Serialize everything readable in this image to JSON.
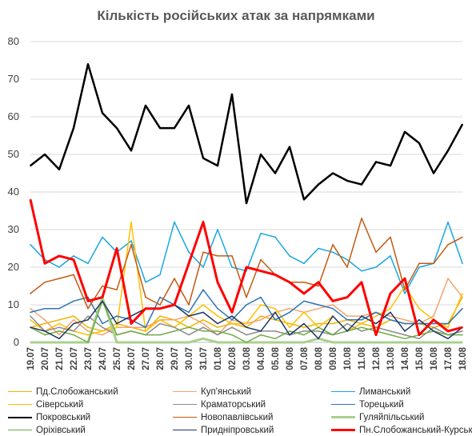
{
  "chart_data": {
    "type": "line",
    "title": "Кількість російських атак за напрямками",
    "xlabel": "",
    "ylabel": "",
    "ylim": [
      0,
      80
    ],
    "yticks": [
      0,
      10,
      20,
      30,
      40,
      50,
      60,
      70,
      80
    ],
    "grid": "horizontal",
    "legend_position": "bottom",
    "categories": [
      "19.07",
      "20.07",
      "21.07",
      "22.07",
      "23.07",
      "24.07",
      "25.07",
      "26.07",
      "27.07",
      "28.07",
      "29.07",
      "30.07",
      "31.07",
      "01.08",
      "02.08",
      "03.08",
      "04.08",
      "05.08",
      "06.08",
      "07.08",
      "08.08",
      "09.08",
      "10.08",
      "11.08",
      "12.08",
      "13.08",
      "14.08",
      "15.08",
      "16.08",
      "17.08",
      "18.08"
    ],
    "series": [
      {
        "name": "Пд.Слобожанський",
        "color": "#f0b400",
        "width": 1.5,
        "values": [
          4,
          5,
          6,
          7,
          4,
          3,
          5,
          4,
          3,
          7,
          6,
          4,
          6,
          4,
          5,
          4,
          7,
          6,
          5,
          4,
          5,
          5,
          6,
          5,
          4,
          6,
          5,
          5,
          4,
          5,
          12
        ]
      },
      {
        "name": "Куп'янський",
        "color": "#f4a46e",
        "width": 1.5,
        "values": [
          9,
          6,
          2,
          6,
          3,
          2,
          4,
          4,
          4,
          6,
          6,
          7,
          5,
          2,
          6,
          5,
          6,
          8,
          9,
          8,
          9,
          10,
          7,
          7,
          8,
          7,
          6,
          5,
          7,
          17,
          12
        ]
      },
      {
        "name": "Лиманський",
        "color": "#1aa7e0",
        "width": 1.5,
        "values": [
          26,
          22,
          20,
          23,
          21,
          28,
          24,
          27,
          16,
          18,
          32,
          24,
          20,
          30,
          20,
          19,
          29,
          28,
          23,
          21,
          25,
          24,
          22,
          19,
          20,
          23,
          13,
          20,
          21,
          32,
          21
        ]
      },
      {
        "name": "Сіверський",
        "color": "#ffc000",
        "width": 1.5,
        "values": [
          6,
          3,
          5,
          3,
          2,
          3,
          4,
          32,
          3,
          6,
          4,
          7,
          10,
          7,
          5,
          5,
          10,
          9,
          4,
          8,
          4,
          7,
          3,
          5,
          7,
          9,
          15,
          9,
          6,
          4,
          13
        ]
      },
      {
        "name": "Краматорський",
        "color": "#8c8c8c",
        "width": 1.5,
        "values": [
          7,
          3,
          4,
          3,
          7,
          4,
          2,
          3,
          2,
          5,
          4,
          2,
          4,
          2,
          4,
          2,
          3,
          3,
          2,
          3,
          3,
          2,
          5,
          3,
          4,
          3,
          2,
          1,
          4,
          2,
          3
        ]
      },
      {
        "name": "Торецький",
        "color": "#2e75b6",
        "width": 1.5,
        "values": [
          8,
          9,
          9,
          11,
          12,
          5,
          7,
          6,
          4,
          12,
          10,
          8,
          14,
          9,
          6,
          10,
          12,
          6,
          8,
          11,
          10,
          9,
          6,
          6,
          8,
          6,
          5,
          5,
          5,
          5,
          9
        ]
      },
      {
        "name": "Покровський",
        "color": "#000000",
        "width": 2.5,
        "values": [
          47,
          50,
          46,
          57,
          74,
          61,
          57,
          51,
          63,
          57,
          57,
          63,
          49,
          47,
          66,
          37,
          50,
          45,
          52,
          38,
          42,
          45,
          43,
          42,
          48,
          47,
          56,
          53,
          45,
          51,
          58
        ]
      },
      {
        "name": "Новопавлівський",
        "color": "#c55a11",
        "width": 1.5,
        "values": [
          13,
          16,
          17,
          18,
          9,
          15,
          14,
          26,
          12,
          10,
          17,
          10,
          24,
          23,
          23,
          12,
          22,
          18,
          16,
          16,
          15,
          26,
          20,
          33,
          24,
          28,
          14,
          21,
          21,
          26,
          28
        ]
      },
      {
        "name": "Гуляйпільський",
        "color": "#a9d18e",
        "width": 3,
        "values": [
          0,
          0,
          0,
          0,
          0,
          12,
          0,
          0,
          0,
          0,
          0,
          0,
          1,
          0,
          0,
          0,
          0,
          0,
          0,
          0,
          1,
          0,
          0,
          0,
          0,
          0,
          0,
          0,
          0,
          0,
          0
        ]
      },
      {
        "name": "Оріхівський",
        "color": "#70ad47",
        "width": 1.5,
        "values": [
          4,
          2,
          3,
          2,
          0,
          11,
          2,
          3,
          2,
          2,
          3,
          4,
          3,
          3,
          2,
          0,
          2,
          1,
          3,
          2,
          4,
          2,
          3,
          4,
          3,
          2,
          1,
          2,
          3,
          2,
          2
        ]
      },
      {
        "name": "Придніпровський",
        "color": "#203864",
        "width": 1.5,
        "values": [
          4,
          3,
          1,
          5,
          6,
          11,
          5,
          7,
          9,
          9,
          10,
          7,
          8,
          5,
          7,
          4,
          3,
          8,
          2,
          5,
          1,
          7,
          3,
          7,
          5,
          8,
          3,
          6,
          3,
          1,
          4
        ]
      },
      {
        "name": "Пн.Слобожанський-Курський",
        "color": "#ff0000",
        "width": 3,
        "values": [
          38,
          21,
          23,
          22,
          11,
          12,
          25,
          5,
          9,
          9,
          10,
          21,
          32,
          16,
          8,
          20,
          19,
          18,
          16,
          13,
          16,
          11,
          12,
          16,
          2,
          13,
          17,
          2,
          6,
          3,
          4
        ]
      }
    ]
  },
  "legend_layout": [
    [
      "Пд.Слобожанський",
      "Куп'янський",
      "Лиманський"
    ],
    [
      "Сіверський",
      "Краматорський",
      "Торецький"
    ],
    [
      "Покровський",
      "Новопавлівський",
      "Гуляйпільський"
    ],
    [
      "Оріхівський",
      "Придніпровський",
      "Пн.Слобожанський-Курський"
    ]
  ]
}
